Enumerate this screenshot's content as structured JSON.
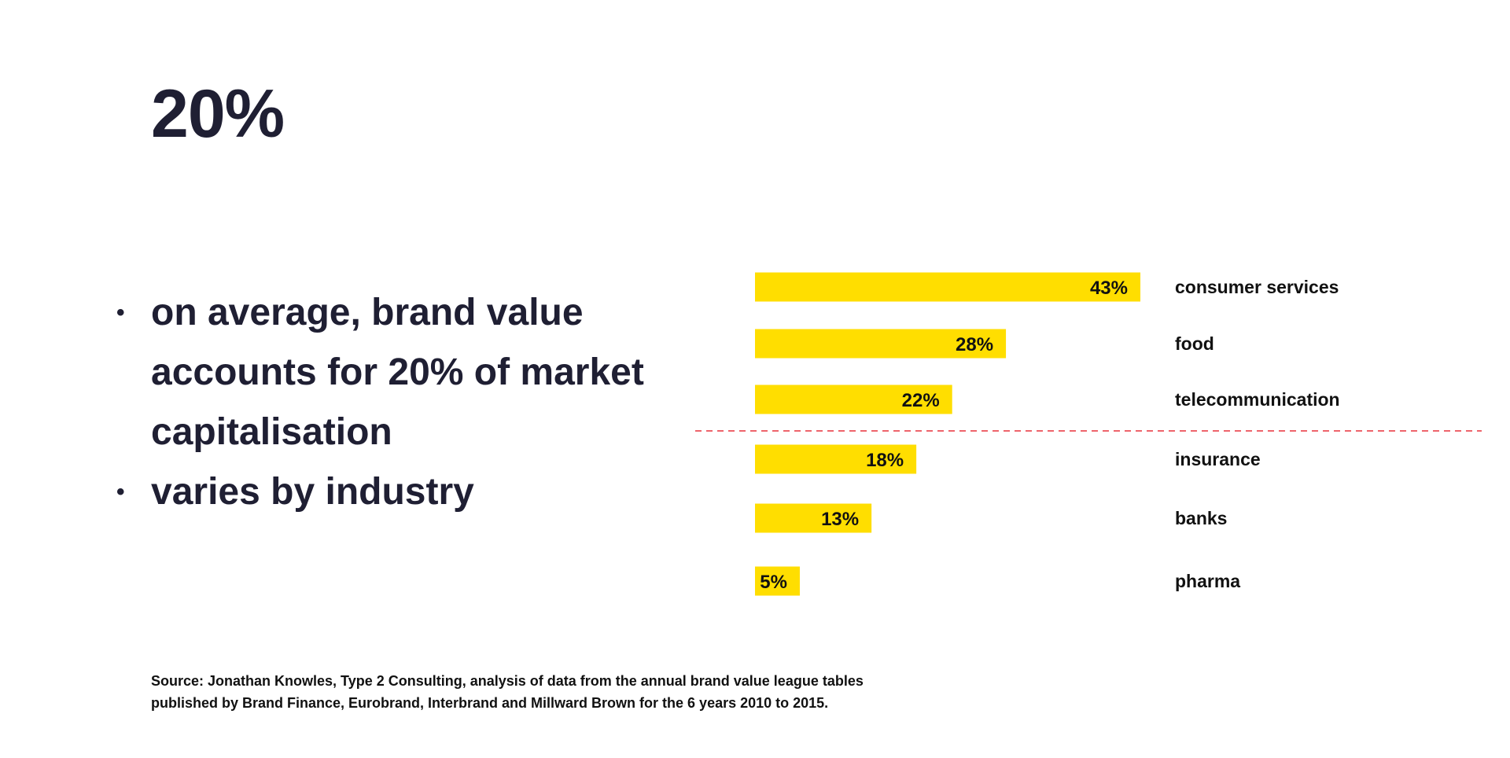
{
  "headline": "20%",
  "bullets": [
    "on average, brand value accounts for 20% of market capitalisation",
    "varies by industry"
  ],
  "bullet_marker": "•",
  "colors": {
    "bar": "#FFDE00",
    "text": "#1f1f33",
    "divider": "#e8313a"
  },
  "chart_data": {
    "type": "bar",
    "orientation": "horizontal",
    "categories": [
      "consumer services",
      "food",
      "telecommunication",
      "insurance",
      "banks",
      "pharma"
    ],
    "values": [
      43,
      28,
      22,
      18,
      13,
      5
    ],
    "value_labels": [
      "43%",
      "28%",
      "22%",
      "18%",
      "13%",
      "5%"
    ],
    "unit": "%",
    "xlim": [
      0,
      43
    ],
    "title": "",
    "xlabel": "",
    "ylabel": "",
    "grid": false,
    "legend": "none",
    "divider_after_category": "telecommunication"
  },
  "source": {
    "line1": "Source: Jonathan Knowles, Type 2 Consulting, analysis of data from the annual brand value league tables",
    "line2": "published by Brand Finance, Eurobrand, Interbrand and Millward Brown for the 6 years 2010 to 2015."
  }
}
